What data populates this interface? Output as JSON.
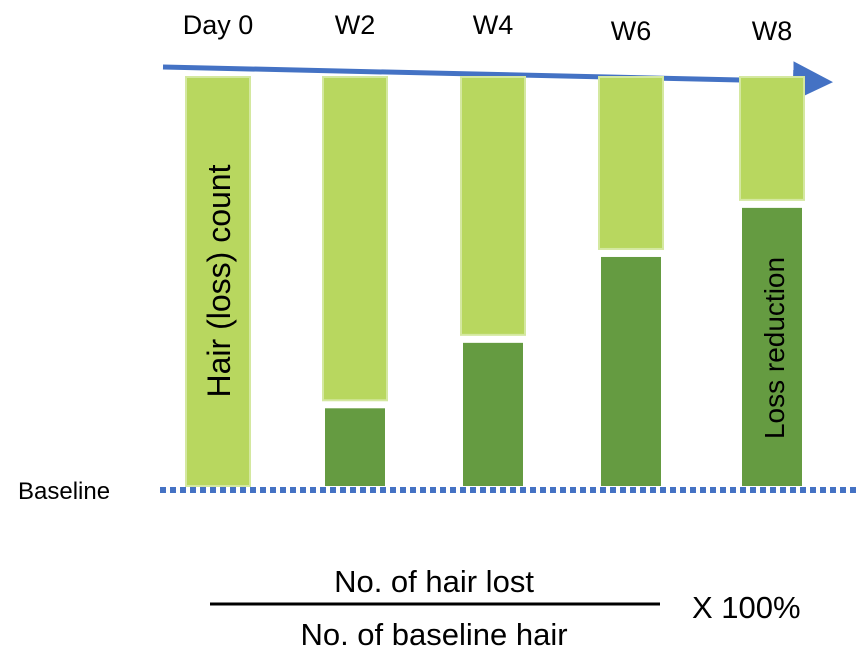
{
  "columns": [
    {
      "label": "Day 0",
      "loss_fraction": 0.0
    },
    {
      "label": "W2",
      "loss_fraction": 0.19
    },
    {
      "label": "W4",
      "loss_fraction": 0.35
    },
    {
      "label": "W6",
      "loss_fraction": 0.56
    },
    {
      "label": "W8",
      "loss_fraction": 0.68
    }
  ],
  "labels": {
    "baseline": "Baseline",
    "hair_loss_count": "Hair (loss) count",
    "loss_reduction": "Loss reduction"
  },
  "formula": {
    "numerator": "No. of hair lost",
    "denominator": "No. of baseline hair",
    "multiplier": "X 100%"
  },
  "colors": {
    "light_green": "#b8d75f",
    "light_green_border": "#d4e8a0",
    "dark_green": "#659b41",
    "arrow_blue": "#4472c4",
    "baseline_dots": "#4472c4"
  }
}
